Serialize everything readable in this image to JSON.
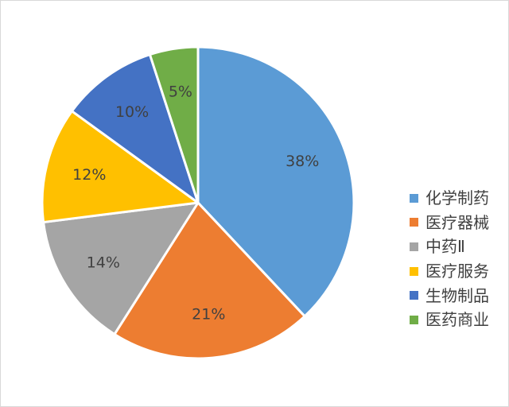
{
  "chart_data": {
    "type": "pie",
    "start_angle_deg": 0,
    "direction": "clockwise",
    "legend_position": "right",
    "slices": [
      {
        "label": "化学制药",
        "value": 38,
        "value_label": "38%",
        "color": "#5B9BD5"
      },
      {
        "label": "医疗器械",
        "value": 21,
        "value_label": "21%",
        "color": "#ED7D31"
      },
      {
        "label": "中药Ⅱ",
        "value": 14,
        "value_label": "14%",
        "color": "#A5A5A5"
      },
      {
        "label": "医疗服务",
        "value": 12,
        "value_label": "12%",
        "color": "#FFC000"
      },
      {
        "label": "生物制品",
        "value": 10,
        "value_label": "10%",
        "color": "#4472C4"
      },
      {
        "label": "医药商业",
        "value": 5,
        "value_label": "5%",
        "color": "#70AD47"
      }
    ]
  }
}
